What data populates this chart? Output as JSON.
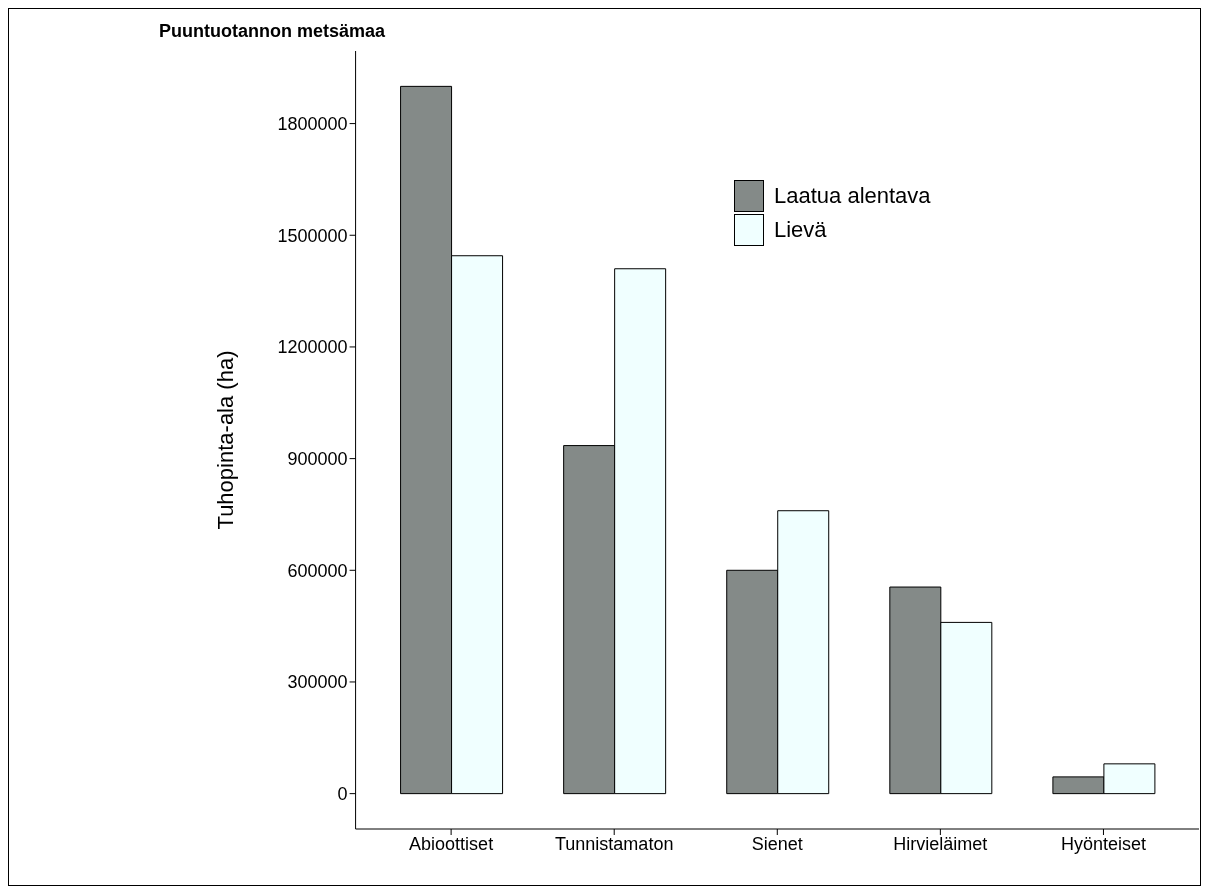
{
  "chart_data": {
    "type": "bar",
    "title": "Puuntuotannon metsämaa",
    "ylabel": "Tuhopinta-ala (ha)",
    "categories": [
      "Abioottiset",
      "Tunnistamaton",
      "Sienet",
      "Hirvieläimet",
      "Hyönteiset"
    ],
    "series": [
      {
        "name": "Laatua alentava",
        "color": "#848a88",
        "values": [
          1900000,
          935000,
          600000,
          555000,
          45000
        ]
      },
      {
        "name": "Lievä",
        "color": "#f0ffff",
        "values": [
          1445000,
          1410000,
          760000,
          460000,
          80000
        ]
      }
    ],
    "ylim": [
      -95000,
      1995000
    ],
    "yticks": [
      0,
      300000,
      600000,
      900000,
      1200000,
      1500000,
      1800000
    ],
    "grid": false,
    "legend": "top right"
  }
}
